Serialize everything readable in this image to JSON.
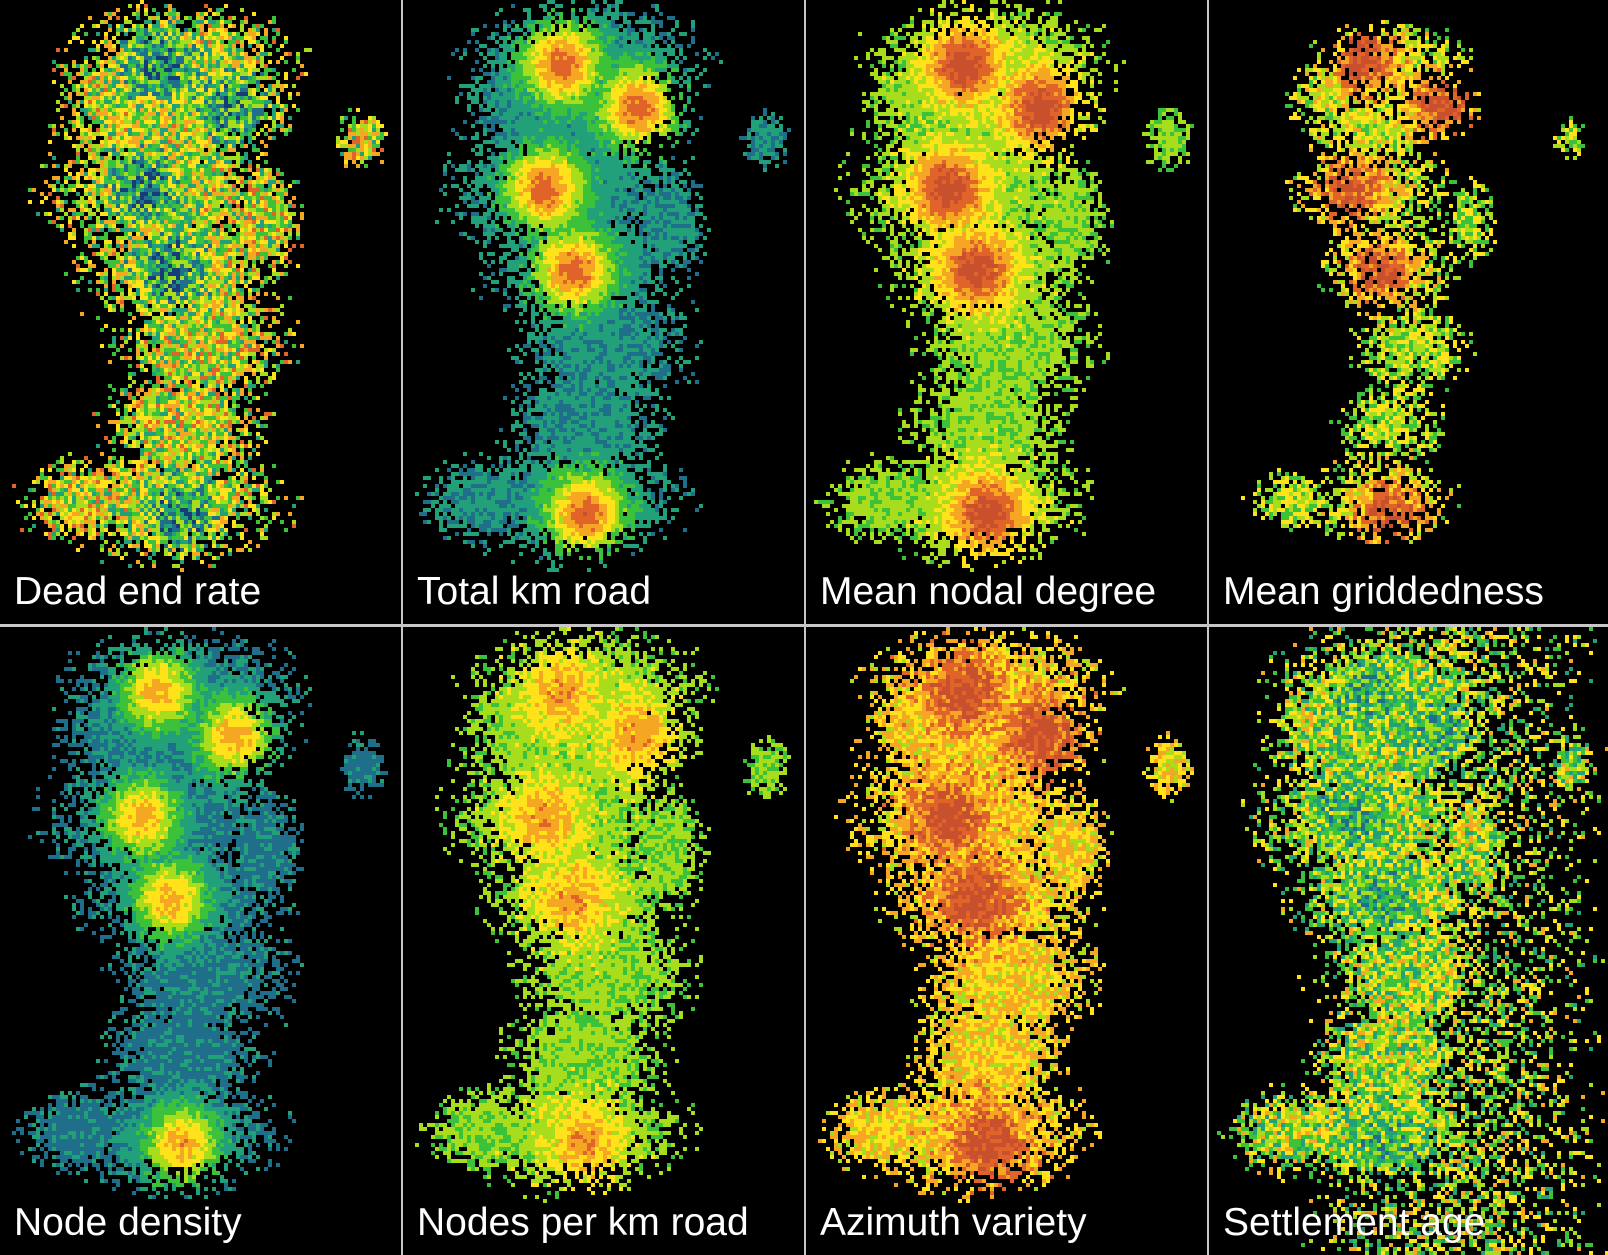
{
  "figure": {
    "panels": [
      {
        "label": "Dead end rate",
        "scheme": "mixed_low"
      },
      {
        "label": "Total km road",
        "scheme": "blue_core_hot"
      },
      {
        "label": "Mean nodal degree",
        "scheme": "green_core_orange"
      },
      {
        "label": "Mean griddedness",
        "scheme": "sparse_core_orange"
      },
      {
        "label": "Node density",
        "scheme": "blue_core_yellow"
      },
      {
        "label": "Nodes per km road",
        "scheme": "green_core_yellow"
      },
      {
        "label": "Azimuth variety",
        "scheme": "orange_core"
      },
      {
        "label": "Settlement age",
        "scheme": "wide_mixed"
      }
    ],
    "colors": {
      "background": "#000000",
      "divider": "#c7c7c7",
      "label": "#ffffff",
      "ramp": [
        "#173d78",
        "#1f6f8b",
        "#22a07a",
        "#3cc23a",
        "#a8dd1e",
        "#ffe21a",
        "#f5a623",
        "#e0642a",
        "#c9502c"
      ]
    }
  }
}
